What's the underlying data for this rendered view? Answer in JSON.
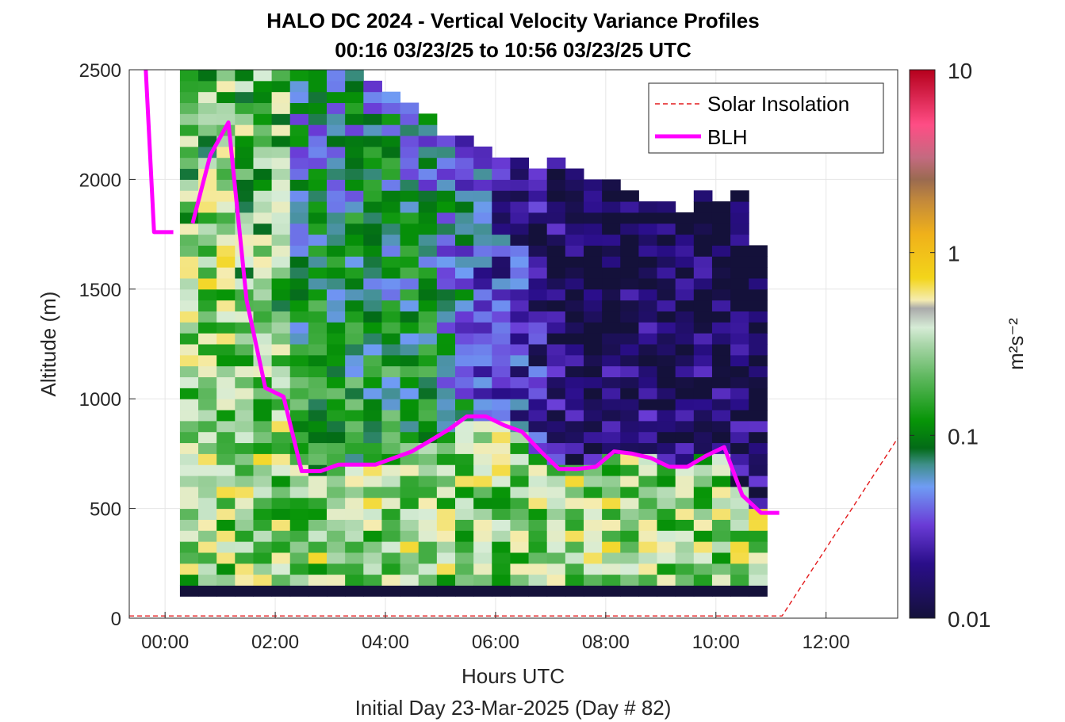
{
  "chart_data": {
    "type": "heatmap",
    "title": "HALO DC 2024 - Vertical Velocity Variance Profiles",
    "subtitle": "00:16 03/23/25 to 10:56 03/23/25  UTC",
    "xlabel": "Hours UTC",
    "xlabel2": "Initial Day 23-Mar-2025 (Day # 82)",
    "ylabel": "Altitude (m)",
    "x_ticks": [
      "00:00",
      "02:00",
      "04:00",
      "06:00",
      "08:00",
      "10:00",
      "12:00"
    ],
    "x_tick_hours": [
      0,
      2,
      4,
      6,
      8,
      10,
      12
    ],
    "y_ticks": [
      0,
      500,
      1000,
      1500,
      2000,
      2500
    ],
    "xlim_hours": [
      -0.65,
      13.3
    ],
    "ylim": [
      0,
      2500
    ],
    "grid": true,
    "legend_position": "top-right",
    "colorbar": {
      "label": "m²s⁻²",
      "scale": "log",
      "range": [
        0.01,
        10
      ],
      "tick_labels": [
        "10",
        "1",
        "0.1",
        "0.01"
      ],
      "tick_values": [
        10,
        1,
        0.1,
        0.01
      ]
    },
    "heatmap": {
      "x_start_hours": 0.27,
      "x_end_hours": 10.93,
      "time_bins": 32,
      "y_bottom": 100,
      "y_top": 2500,
      "altitude_bin_m": 50,
      "description_note": "Variance field: high (0.3-1.5 m2s-2) below boundary layer, lower (0.05-0.3) at mid levels early, dropping to 0.01-0.03 aloft after 06:00; bottom bin ~0.01."
    },
    "series": [
      {
        "name": "Solar Insolation",
        "style": "dashed",
        "color": "#e31a1c",
        "x_hours": [
          -0.65,
          11.2,
          13.3
        ],
        "y": [
          10,
          10,
          820
        ]
      },
      {
        "name": "BLH",
        "style": "solid",
        "color": "#ff00ff",
        "segments": [
          {
            "x_hours": [
              -0.35,
              -0.2,
              -0.15,
              0.15
            ],
            "y": [
              2500,
              1760,
              1760,
              1760
            ]
          },
          {
            "x_hours": [
              0.5,
              0.82,
              1.15,
              1.48,
              1.82,
              2.15,
              2.48,
              2.82,
              3.15,
              3.48,
              3.82,
              4.15,
              4.48,
              4.82,
              5.15,
              5.48,
              5.82,
              6.15,
              6.48,
              6.82,
              7.15,
              7.48,
              7.82,
              8.15,
              8.48,
              8.82,
              9.15,
              9.48,
              9.82,
              10.15,
              10.48,
              10.82,
              11.15
            ],
            "y": [
              1800,
              2110,
              2260,
              1450,
              1050,
              1010,
              670,
              670,
              700,
              700,
              700,
              730,
              760,
              810,
              860,
              920,
              920,
              880,
              850,
              760,
              680,
              680,
              690,
              760,
              750,
              730,
              690,
              690,
              740,
              780,
              560,
              480,
              480
            ]
          }
        ]
      }
    ]
  }
}
